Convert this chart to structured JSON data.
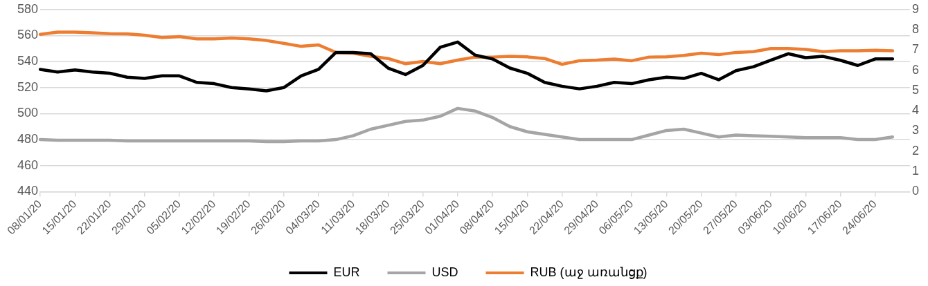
{
  "chart_data": {
    "type": "line",
    "categories": [
      "08/01/20",
      null,
      "15/01/20",
      null,
      "22/01/20",
      null,
      "29/01/20",
      null,
      "05/02/20",
      null,
      "12/02/20",
      null,
      "19/02/20",
      null,
      "26/02/20",
      null,
      "04/03/20",
      null,
      "11/03/20",
      null,
      "18/03/20",
      null,
      "25/03/20",
      null,
      "01/04/20",
      null,
      "08/04/20",
      null,
      "15/04/20",
      null,
      "22/04/20",
      null,
      "29/04/20",
      null,
      "06/05/20",
      null,
      "13/05/20",
      null,
      "20/05/20",
      null,
      "27/05/20",
      null,
      "03/06/20",
      null,
      "10/06/20",
      null,
      "17/06/20",
      null,
      "24/06/20",
      null,
      null
    ],
    "series": [
      {
        "name": "EUR",
        "color": "#000000",
        "values": [
          534,
          532,
          533.5,
          532,
          531,
          528,
          527,
          529,
          529,
          524,
          523,
          520,
          519,
          517.5,
          520,
          529,
          534,
          547,
          547,
          546,
          535,
          530,
          537,
          551,
          555,
          545,
          542,
          535,
          531,
          524,
          521,
          519,
          521,
          524,
          523,
          526,
          528,
          527,
          531,
          526,
          533,
          536,
          541,
          546,
          543,
          544,
          541,
          537,
          542,
          542,
          null
        ]
      },
      {
        "name": "USD",
        "color": "#a5a5a5",
        "values": [
          480,
          479.5,
          479.5,
          479.5,
          479.5,
          479,
          479,
          479,
          479,
          479,
          479,
          479,
          479,
          478.5,
          478.5,
          479,
          479,
          480,
          483,
          488,
          491,
          494,
          495,
          498,
          504,
          502,
          497,
          490,
          486,
          484,
          482,
          480,
          480,
          480,
          480,
          483.5,
          487,
          488,
          485,
          482,
          483.5,
          483,
          482.5,
          482,
          481.5,
          481.5,
          481.5,
          480,
          480,
          482,
          null
        ]
      },
      {
        "name": "RUB (աջ առանցք)",
        "color": "#ed7d31",
        "axis": "y2",
        "values": [
          7.77,
          7.88,
          7.88,
          7.85,
          7.81,
          7.8,
          7.73,
          7.62,
          7.66,
          7.55,
          7.55,
          7.59,
          7.55,
          7.47,
          7.33,
          7.18,
          7.25,
          6.88,
          6.84,
          6.69,
          6.58,
          6.32,
          6.43,
          6.32,
          6.5,
          6.65,
          6.65,
          6.69,
          6.66,
          6.58,
          6.29,
          6.47,
          6.5,
          6.55,
          6.47,
          6.65,
          6.66,
          6.73,
          6.84,
          6.77,
          6.88,
          6.92,
          7.07,
          7.07,
          7.03,
          6.92,
          6.96,
          6.96,
          6.99,
          6.96,
          null
        ]
      }
    ],
    "ylim": [
      440,
      580
    ],
    "yticks": [
      440,
      460,
      480,
      500,
      520,
      540,
      560,
      580
    ],
    "y2lim": [
      0,
      9
    ],
    "y2ticks": [
      0,
      1,
      2,
      3,
      4,
      5,
      6,
      7,
      8,
      9
    ],
    "grid": "y",
    "legend": "bottom",
    "marker": "none",
    "line_style": "solid"
  }
}
